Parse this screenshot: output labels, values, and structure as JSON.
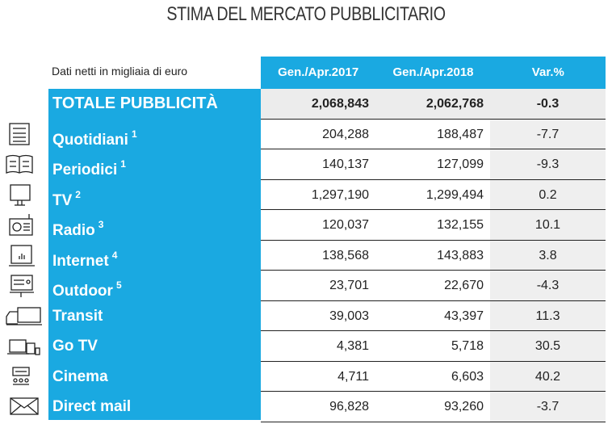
{
  "title": "STIMA DEL MERCATO PUBBLICITARIO",
  "unit_note": "Dati netti in migliaia di euro",
  "columns": [
    "Gen./Apr.2017",
    "Gen./Apr.2018",
    "Var.%"
  ],
  "rows": [
    {
      "label": "TOTALE PUBBLICITÀ",
      "note": "",
      "v2017": "2,068,843",
      "v2018": "2,062,768",
      "var": "-0.3",
      "icon": ""
    },
    {
      "label": "Quotidiani",
      "note": "1",
      "v2017": "204,288",
      "v2018": "188,487",
      "var": "-7.7",
      "icon": "newspaper-icon"
    },
    {
      "label": "Periodici",
      "note": "1",
      "v2017": "140,137",
      "v2018": "127,099",
      "var": "-9.3",
      "icon": "open-book-icon"
    },
    {
      "label": "TV",
      "note": "2",
      "v2017": "1,297,190",
      "v2018": "1,299,494",
      "var": "0.2",
      "icon": "tv-icon"
    },
    {
      "label": "Radio",
      "note": "3",
      "v2017": "120,037",
      "v2018": "132,155",
      "var": "10.1",
      "icon": "radio-icon"
    },
    {
      "label": "Internet",
      "note": "4",
      "v2017": "138,568",
      "v2018": "143,883",
      "var": "3.8",
      "icon": "laptop-chart-icon"
    },
    {
      "label": "Outdoor",
      "note": "5",
      "v2017": "23,701",
      "v2018": "22,670",
      "var": "-4.3",
      "icon": "billboard-icon"
    },
    {
      "label": "Transit",
      "note": "",
      "v2017": "39,003",
      "v2018": "43,397",
      "var": "11.3",
      "icon": "truck-icon"
    },
    {
      "label": "Go TV",
      "note": "",
      "v2017": "4,381",
      "v2018": "5,718",
      "var": "30.5",
      "icon": "devices-icon"
    },
    {
      "label": "Cinema",
      "note": "",
      "v2017": "4,711",
      "v2018": "6,603",
      "var": "40.2",
      "icon": "cinema-icon"
    },
    {
      "label": "Direct mail",
      "note": "",
      "v2017": "96,828",
      "v2018": "93,260",
      "var": "-3.7",
      "icon": "envelope-icon"
    }
  ]
}
